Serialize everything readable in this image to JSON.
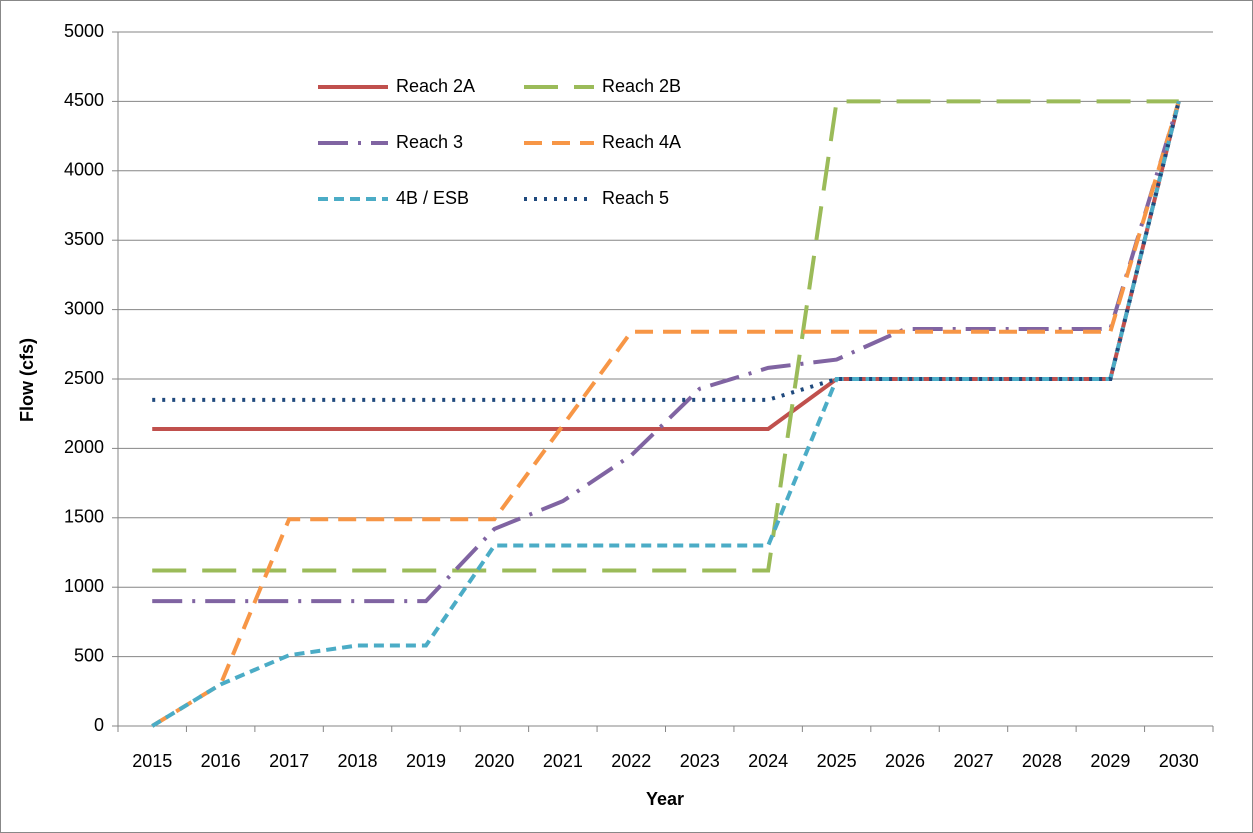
{
  "chart_data": {
    "type": "line",
    "x_label": "Year",
    "y_label": "Flow (cfs)",
    "categories": [
      "2015",
      "2016",
      "2017",
      "2018",
      "2019",
      "2020",
      "2021",
      "2022",
      "2023",
      "2024",
      "2025",
      "2026",
      "2027",
      "2028",
      "2029",
      "2030"
    ],
    "series": [
      {
        "name": "Reach 2A",
        "color": "#c0504d",
        "dash": "none",
        "values": [
          2140,
          2140,
          2140,
          2140,
          2140,
          2140,
          2140,
          2140,
          2140,
          2140,
          2500,
          2500,
          2500,
          2500,
          2500,
          4500
        ]
      },
      {
        "name": "Reach 2B",
        "color": "#9bbb59",
        "dash": "34 16",
        "values": [
          1120,
          1120,
          1120,
          1120,
          1120,
          1120,
          1120,
          1120,
          1120,
          1120,
          4500,
          4500,
          4500,
          4500,
          4500,
          4500
        ]
      },
      {
        "name": "Reach 3",
        "color": "#8064a2",
        "dash": "30 10 3 10",
        "values": [
          900,
          900,
          900,
          900,
          900,
          1420,
          1620,
          1950,
          2430,
          2580,
          2640,
          2860,
          2860,
          2860,
          2860,
          4500
        ]
      },
      {
        "name": "Reach 4A",
        "color": "#f79646",
        "dash": "18 10",
        "values": [
          0,
          300,
          1490,
          1490,
          1490,
          1490,
          2165,
          2840,
          2840,
          2840,
          2840,
          2840,
          2840,
          2840,
          2840,
          4500
        ]
      },
      {
        "name": "4B / ESB",
        "color": "#4bacc6",
        "dash": "10 6",
        "values": [
          0,
          300,
          510,
          580,
          580,
          1300,
          1300,
          1300,
          1300,
          1300,
          2500,
          2500,
          2500,
          2500,
          2500,
          4500
        ]
      },
      {
        "name": "Reach 5",
        "color": "#1f497d",
        "dash": "3 7",
        "values": [
          2350,
          2350,
          2350,
          2350,
          2350,
          2350,
          2350,
          2350,
          2350,
          2350,
          2500,
          2500,
          2500,
          2500,
          2500,
          4500
        ]
      }
    ],
    "ylim": [
      0,
      5000
    ],
    "yticks": [
      0,
      500,
      1000,
      1500,
      2000,
      2500,
      3000,
      3500,
      4000,
      4500,
      5000
    ],
    "grid": true
  }
}
